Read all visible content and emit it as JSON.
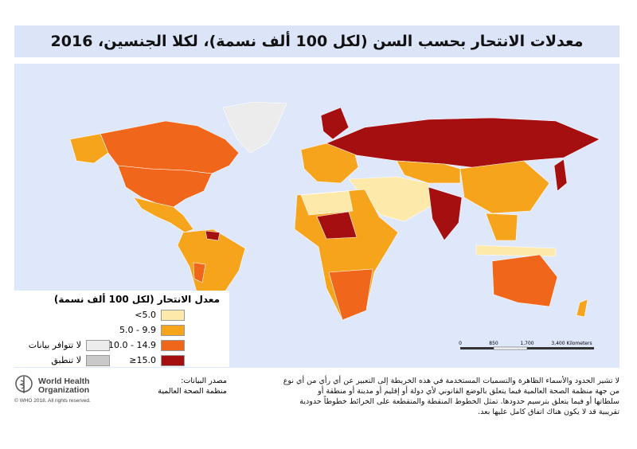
{
  "header": {
    "title": "معدلات الانتحار بحسب السن (لكل 100 ألف نسمة)، لكلا الجنسين، 2016"
  },
  "legend": {
    "title": "معدل الانتحار (لكل 100 ألف نسمة)",
    "items": [
      {
        "label": "<5.0",
        "color": "#fde9a9"
      },
      {
        "label": "5.0 - 9.9",
        "color": "#f6a41c"
      },
      {
        "label": "10.0 - 14.9",
        "color": "#f0661a"
      },
      {
        "label": "≥15.0",
        "color": "#a50f0f"
      },
      {
        "label": "لا تتوافر بيانات",
        "color": "#ececec"
      },
      {
        "label": "لا تنطبق",
        "color": "#c9c9c9"
      }
    ]
  },
  "scale_bar": {
    "labels": [
      "0",
      "850",
      "1,700",
      "3,400 Kilometers"
    ]
  },
  "logo": {
    "line1": "World Health",
    "line2": "Organization"
  },
  "copyright": "© WHO 2018. All rights reserved.",
  "source": {
    "label": "مصدر البيانات:",
    "text": "منظمة الصحة العالمية"
  },
  "disclaimer": [
    "لا تشير الحدود والأسماء الظاهرة والتسميات المستخدمة في هذه الخريطة إلى التعبير عن أي رأي من أي نوع",
    "من جهة منظمة الصحة العالمية فيما يتعلق بالوضع القانوني لأي دولة أو إقليم أو مدينة أو منطقة أو",
    "سلطاتها أو فيما يتعلق بترسيم حدودها. تمثل الخطوط المنقطة والمتقطعة على الخرائط خطوطاً حدودية",
    "تقريبية قد لا يكون هناك اتفاق كامل عليها بعد."
  ]
}
